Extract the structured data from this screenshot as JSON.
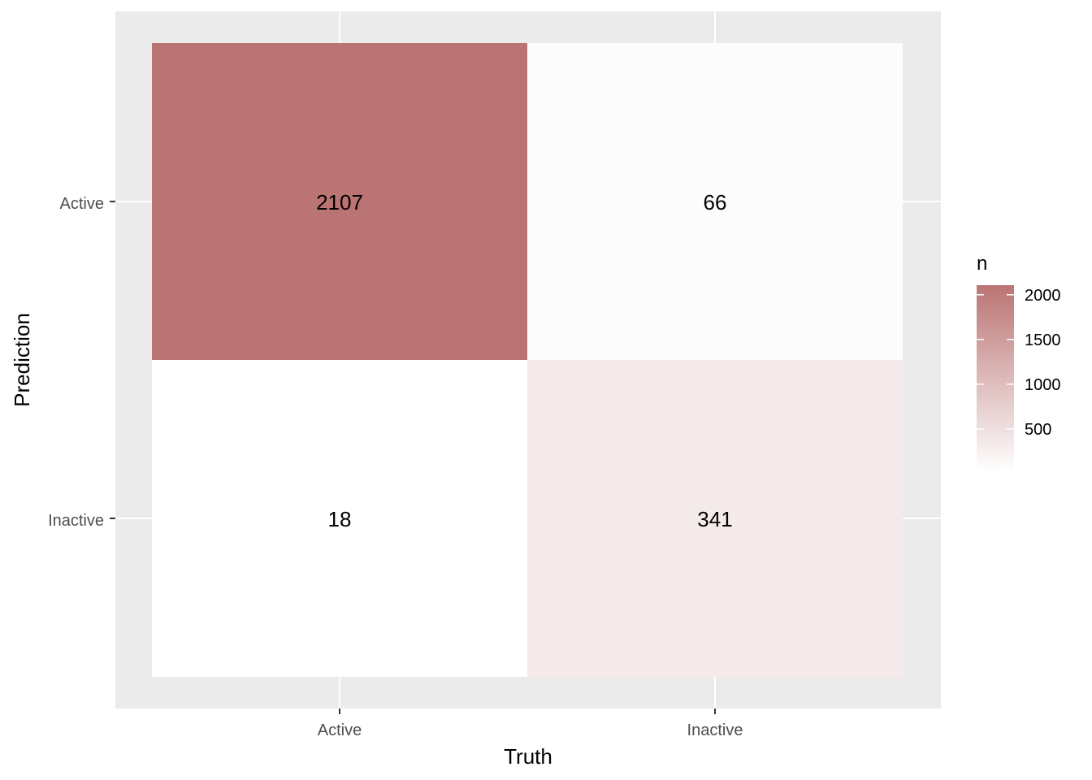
{
  "chart_data": {
    "type": "heatmap",
    "xlabel": "Truth",
    "ylabel": "Prediction",
    "x_categories": [
      "Active",
      "Inactive"
    ],
    "y_categories": [
      "Active",
      "Inactive"
    ],
    "cells": [
      {
        "truth": "Active",
        "prediction": "Active",
        "n": 2107
      },
      {
        "truth": "Inactive",
        "prediction": "Active",
        "n": 66
      },
      {
        "truth": "Active",
        "prediction": "Inactive",
        "n": 18
      },
      {
        "truth": "Inactive",
        "prediction": "Inactive",
        "n": 341
      }
    ],
    "legend": {
      "title": "n",
      "placement": "right",
      "breaks": [
        500,
        1000,
        1500,
        2000
      ],
      "range": [
        18,
        2107
      ]
    },
    "colors": {
      "low": "#ffffff",
      "high": "#bb7474",
      "panel_background": "#ebebeb",
      "grid": "#ffffff"
    },
    "grid": true
  }
}
